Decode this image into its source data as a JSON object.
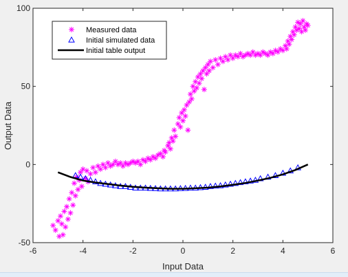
{
  "chart_data": {
    "type": "scatter",
    "title": "",
    "xlabel": "Input Data",
    "ylabel": "Output Data",
    "xlim": [
      -6,
      6
    ],
    "ylim": [
      -50,
      100
    ],
    "xticks": [
      -6,
      -4,
      -2,
      0,
      2,
      4,
      6
    ],
    "yticks": [
      -50,
      0,
      50,
      100
    ],
    "grid": false,
    "legend_position": "top-left",
    "series": [
      {
        "name": "Measured data",
        "marker": "asterisk",
        "color": "#ff00ff",
        "points": [
          [
            -5.2,
            -39
          ],
          [
            -5.1,
            -42
          ],
          [
            -5.0,
            -36
          ],
          [
            -4.95,
            -46
          ],
          [
            -4.9,
            -33
          ],
          [
            -4.85,
            -38
          ],
          [
            -4.8,
            -45
          ],
          [
            -4.75,
            -30
          ],
          [
            -4.7,
            -40
          ],
          [
            -4.65,
            -27
          ],
          [
            -4.6,
            -35
          ],
          [
            -4.55,
            -22
          ],
          [
            -4.5,
            -31
          ],
          [
            -4.45,
            -18
          ],
          [
            -4.4,
            -26
          ],
          [
            -4.35,
            -12
          ],
          [
            -4.3,
            -20
          ],
          [
            -4.25,
            -8
          ],
          [
            -4.2,
            -16
          ],
          [
            -4.15,
            -10
          ],
          [
            -4.1,
            -5
          ],
          [
            -4.05,
            -14
          ],
          [
            -4.0,
            -3
          ],
          [
            -3.9,
            -9
          ],
          [
            -3.85,
            -4
          ],
          [
            -3.8,
            -11
          ],
          [
            -3.7,
            -6
          ],
          [
            -3.6,
            -2
          ],
          [
            -3.5,
            -5
          ],
          [
            -3.4,
            -1
          ],
          [
            -3.3,
            -3
          ],
          [
            -3.2,
            0
          ],
          [
            -3.1,
            -2
          ],
          [
            -3.0,
            1
          ],
          [
            -2.9,
            -1
          ],
          [
            -2.8,
            0
          ],
          [
            -2.7,
            2
          ],
          [
            -2.6,
            0
          ],
          [
            -2.5,
            1
          ],
          [
            -2.4,
            -1
          ],
          [
            -2.3,
            1
          ],
          [
            -2.2,
            0
          ],
          [
            -2.1,
            1
          ],
          [
            -2.0,
            2
          ],
          [
            -1.9,
            1
          ],
          [
            -1.8,
            2
          ],
          [
            -1.7,
            0
          ],
          [
            -1.6,
            3
          ],
          [
            -1.5,
            2
          ],
          [
            -1.4,
            4
          ],
          [
            -1.3,
            3
          ],
          [
            -1.2,
            5
          ],
          [
            -1.1,
            4
          ],
          [
            -1.0,
            6
          ],
          [
            -0.9,
            7
          ],
          [
            -0.8,
            5
          ],
          [
            -0.75,
            9
          ],
          [
            -0.7,
            8
          ],
          [
            -0.6,
            12
          ],
          [
            -0.55,
            14
          ],
          [
            -0.5,
            10
          ],
          [
            -0.45,
            17
          ],
          [
            -0.4,
            15
          ],
          [
            -0.35,
            22
          ],
          [
            -0.3,
            18
          ],
          [
            -0.2,
            26
          ],
          [
            -0.15,
            30
          ],
          [
            -0.1,
            24
          ],
          [
            -0.05,
            33
          ],
          [
            0.0,
            28
          ],
          [
            0.05,
            35
          ],
          [
            0.1,
            31
          ],
          [
            0.15,
            38
          ],
          [
            0.2,
            22
          ],
          [
            0.25,
            40
          ],
          [
            0.3,
            45
          ],
          [
            0.35,
            42
          ],
          [
            0.4,
            50
          ],
          [
            0.45,
            47
          ],
          [
            0.5,
            53
          ],
          [
            0.55,
            49
          ],
          [
            0.6,
            56
          ],
          [
            0.65,
            52
          ],
          [
            0.7,
            58
          ],
          [
            0.75,
            55
          ],
          [
            0.8,
            60
          ],
          [
            0.85,
            48
          ],
          [
            0.9,
            62
          ],
          [
            0.95,
            58
          ],
          [
            1.0,
            64
          ],
          [
            1.05,
            60
          ],
          [
            1.1,
            66
          ],
          [
            1.2,
            62
          ],
          [
            1.3,
            67
          ],
          [
            1.4,
            64
          ],
          [
            1.5,
            68
          ],
          [
            1.6,
            66
          ],
          [
            1.7,
            69
          ],
          [
            1.8,
            67
          ],
          [
            1.9,
            70
          ],
          [
            2.0,
            68
          ],
          [
            2.1,
            70
          ],
          [
            2.2,
            69
          ],
          [
            2.3,
            71
          ],
          [
            2.4,
            69
          ],
          [
            2.5,
            70
          ],
          [
            2.6,
            71
          ],
          [
            2.7,
            70
          ],
          [
            2.8,
            72
          ],
          [
            2.9,
            70
          ],
          [
            3.0,
            71
          ],
          [
            3.1,
            70
          ],
          [
            3.2,
            72
          ],
          [
            3.3,
            71
          ],
          [
            3.4,
            70
          ],
          [
            3.5,
            72
          ],
          [
            3.6,
            71
          ],
          [
            3.7,
            73
          ],
          [
            3.8,
            72
          ],
          [
            3.9,
            74
          ],
          [
            4.0,
            73
          ],
          [
            4.1,
            76
          ],
          [
            4.15,
            74
          ],
          [
            4.2,
            79
          ],
          [
            4.25,
            77
          ],
          [
            4.3,
            82
          ],
          [
            4.35,
            80
          ],
          [
            4.4,
            85
          ],
          [
            4.45,
            83
          ],
          [
            4.5,
            88
          ],
          [
            4.55,
            86
          ],
          [
            4.6,
            91
          ],
          [
            4.65,
            87
          ],
          [
            4.7,
            90
          ],
          [
            4.75,
            85
          ],
          [
            4.8,
            92
          ],
          [
            4.85,
            88
          ],
          [
            4.9,
            86
          ],
          [
            4.95,
            90
          ],
          [
            5.0,
            89
          ]
        ]
      },
      {
        "name": "Initial simulated data",
        "marker": "triangle",
        "color": "#0000ff",
        "points": [
          [
            -4.3,
            -7
          ],
          [
            -4.1,
            -8
          ],
          [
            -3.9,
            -9
          ],
          [
            -3.7,
            -10
          ],
          [
            -3.5,
            -11
          ],
          [
            -3.3,
            -12
          ],
          [
            -3.1,
            -12.5
          ],
          [
            -2.9,
            -13
          ],
          [
            -2.7,
            -13.5
          ],
          [
            -2.5,
            -14
          ],
          [
            -2.3,
            -14
          ],
          [
            -2.1,
            -14.5
          ],
          [
            -1.9,
            -15
          ],
          [
            -1.7,
            -15
          ],
          [
            -1.5,
            -15
          ],
          [
            -1.3,
            -15.2
          ],
          [
            -1.1,
            -15.3
          ],
          [
            -0.9,
            -15.5
          ],
          [
            -0.7,
            -15.5
          ],
          [
            -0.5,
            -15.5
          ],
          [
            -0.3,
            -15.5
          ],
          [
            -0.1,
            -15.3
          ],
          [
            0.1,
            -15.2
          ],
          [
            0.3,
            -15
          ],
          [
            0.5,
            -15
          ],
          [
            0.7,
            -14.7
          ],
          [
            0.9,
            -14.5
          ],
          [
            1.1,
            -14
          ],
          [
            1.3,
            -13.7
          ],
          [
            1.5,
            -13.5
          ],
          [
            1.7,
            -13
          ],
          [
            1.9,
            -12.5
          ],
          [
            2.1,
            -12
          ],
          [
            2.3,
            -11.5
          ],
          [
            2.5,
            -11
          ],
          [
            2.7,
            -10.5
          ],
          [
            2.9,
            -10
          ],
          [
            3.1,
            -9
          ],
          [
            3.4,
            -8
          ],
          [
            3.7,
            -7
          ],
          [
            4.0,
            -5.5
          ],
          [
            4.3,
            -4
          ],
          [
            4.6,
            -2
          ]
        ]
      },
      {
        "name": "Initial table output",
        "marker": "line",
        "color": "#000000",
        "points": [
          [
            -5.0,
            -5
          ],
          [
            -4.5,
            -8
          ],
          [
            -4.0,
            -10.3
          ],
          [
            -3.5,
            -11.5
          ],
          [
            -3.0,
            -12.5
          ],
          [
            -2.5,
            -13.5
          ],
          [
            -2.0,
            -14.3
          ],
          [
            -1.5,
            -14.8
          ],
          [
            -1.0,
            -15.2
          ],
          [
            -0.5,
            -15.5
          ],
          [
            0.0,
            -15.5
          ],
          [
            0.5,
            -15.2
          ],
          [
            1.0,
            -14.8
          ],
          [
            1.5,
            -14
          ],
          [
            2.0,
            -13
          ],
          [
            2.5,
            -11.8
          ],
          [
            3.0,
            -10.3
          ],
          [
            3.5,
            -8.5
          ],
          [
            4.0,
            -6.3
          ],
          [
            4.5,
            -3.5
          ],
          [
            5.0,
            0
          ]
        ]
      }
    ]
  }
}
